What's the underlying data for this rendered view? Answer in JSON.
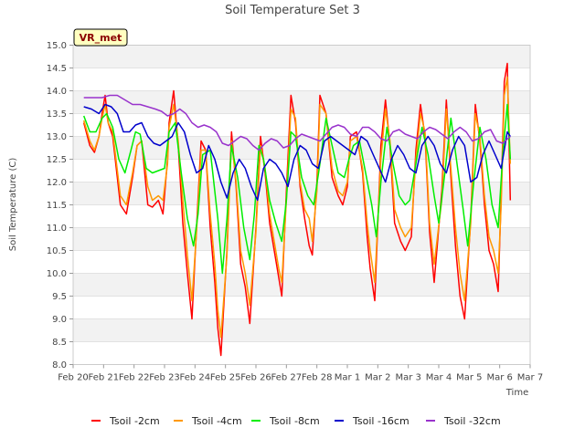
{
  "chart_data": {
    "type": "line",
    "title": "Soil Temperature Set 3",
    "xlabel": "Time",
    "ylabel": "Soil Temperature (C)",
    "station_label": "VR_met",
    "ylim": [
      8.0,
      15.0
    ],
    "y_ticks": [
      "8.0",
      "8.5",
      "9.0",
      "9.5",
      "10.0",
      "10.5",
      "11.0",
      "11.5",
      "12.0",
      "12.5",
      "13.0",
      "13.5",
      "14.0",
      "14.5",
      "15.0"
    ],
    "x_ticks": [
      "Feb 20",
      "Feb 21",
      "Feb 22",
      "Feb 23",
      "Feb 24",
      "Feb 25",
      "Feb 26",
      "Feb 27",
      "Feb 28",
      "Mar 1",
      "Mar 2",
      "Mar 3",
      "Mar 4",
      "Mar 5",
      "Mar 6",
      "Mar 7"
    ],
    "x_unit": "day index (0 = Feb 20, 15 = Mar 7)",
    "xlim": [
      0,
      15
    ],
    "grid": "horizontal bands",
    "legend_position": "bottom",
    "series": [
      {
        "name": "Tsoil -2cm",
        "color": "#ff0000",
        "x": [
          0.35,
          0.55,
          0.7,
          0.85,
          0.95,
          1.05,
          1.15,
          1.3,
          1.55,
          1.75,
          1.95,
          2.1,
          2.25,
          2.45,
          2.6,
          2.8,
          2.95,
          3.1,
          3.15,
          3.3,
          3.45,
          3.6,
          3.75,
          3.9,
          4.05,
          4.2,
          4.35,
          4.5,
          4.65,
          4.75,
          4.85,
          5.05,
          5.2,
          5.35,
          5.5,
          5.65,
          5.8,
          6.0,
          6.15,
          6.3,
          6.45,
          6.6,
          6.75,
          6.85,
          7.0,
          7.15,
          7.3,
          7.45,
          7.6,
          7.75,
          7.85,
          8.0,
          8.1,
          8.3,
          8.5,
          8.7,
          8.85,
          9.0,
          9.1,
          9.3,
          9.5,
          9.65,
          9.75,
          9.9,
          10.1,
          10.25,
          10.4,
          10.55,
          10.75,
          10.9,
          11.1,
          11.25,
          11.4,
          11.55,
          11.7,
          11.85,
          12.1,
          12.25,
          12.4,
          12.55,
          12.7,
          12.85,
          13.05,
          13.2,
          13.35,
          13.5,
          13.65,
          13.8,
          13.95,
          14.05,
          14.15,
          14.25,
          14.35
        ],
        "y": [
          13.3,
          12.8,
          12.65,
          13.0,
          13.5,
          13.9,
          13.3,
          13.0,
          11.5,
          11.3,
          12.1,
          12.8,
          12.9,
          11.5,
          11.45,
          11.6,
          11.3,
          12.5,
          13.3,
          14.0,
          12.8,
          11.1,
          10.0,
          9.0,
          11.0,
          12.9,
          12.7,
          11.0,
          9.8,
          8.8,
          8.2,
          10.5,
          13.1,
          11.9,
          10.2,
          9.7,
          8.9,
          11.0,
          13.0,
          12.2,
          11.1,
          10.5,
          9.9,
          9.5,
          11.8,
          13.9,
          13.3,
          11.9,
          11.2,
          10.6,
          10.4,
          12.0,
          13.9,
          13.5,
          12.1,
          11.7,
          11.5,
          11.9,
          13.0,
          13.1,
          12.2,
          10.8,
          10.1,
          9.4,
          12.8,
          13.8,
          12.8,
          11.1,
          10.7,
          10.5,
          10.8,
          12.7,
          13.7,
          13.0,
          10.9,
          9.8,
          11.8,
          13.8,
          12.1,
          10.6,
          9.5,
          9.0,
          11.2,
          13.7,
          12.9,
          11.5,
          10.5,
          10.2,
          9.6,
          11.7,
          14.2,
          14.6,
          11.6
        ]
      },
      {
        "name": "Tsoil -4cm",
        "color": "#ff9900",
        "x": [
          0.35,
          0.55,
          0.7,
          0.85,
          0.95,
          1.05,
          1.15,
          1.3,
          1.55,
          1.75,
          1.95,
          2.1,
          2.25,
          2.45,
          2.6,
          2.8,
          2.95,
          3.1,
          3.15,
          3.3,
          3.45,
          3.6,
          3.75,
          3.9,
          4.05,
          4.2,
          4.35,
          4.5,
          4.65,
          4.75,
          4.85,
          5.05,
          5.2,
          5.35,
          5.5,
          5.65,
          5.8,
          6.0,
          6.15,
          6.3,
          6.45,
          6.6,
          6.75,
          6.85,
          7.0,
          7.15,
          7.3,
          7.45,
          7.6,
          7.75,
          7.85,
          8.0,
          8.1,
          8.3,
          8.5,
          8.7,
          8.85,
          9.0,
          9.1,
          9.3,
          9.5,
          9.65,
          9.75,
          9.9,
          10.1,
          10.25,
          10.4,
          10.55,
          10.75,
          10.9,
          11.1,
          11.25,
          11.4,
          11.55,
          11.7,
          11.85,
          12.1,
          12.25,
          12.4,
          12.55,
          12.7,
          12.85,
          13.05,
          13.2,
          13.35,
          13.5,
          13.65,
          13.8,
          13.95,
          14.05,
          14.15,
          14.25,
          14.35
        ],
        "y": [
          13.35,
          12.9,
          12.7,
          13.0,
          13.4,
          13.7,
          13.3,
          13.1,
          11.7,
          11.5,
          12.2,
          12.8,
          12.9,
          11.9,
          11.6,
          11.7,
          11.6,
          12.4,
          13.2,
          13.7,
          12.9,
          11.6,
          10.4,
          9.4,
          10.9,
          12.7,
          12.7,
          11.3,
          10.2,
          9.2,
          8.6,
          10.4,
          12.9,
          12.0,
          10.5,
          10.0,
          9.3,
          10.9,
          12.8,
          12.3,
          11.3,
          10.7,
          10.1,
          9.8,
          11.6,
          13.6,
          13.4,
          12.0,
          11.4,
          11.2,
          10.7,
          11.8,
          13.7,
          13.5,
          12.3,
          11.8,
          11.7,
          12.0,
          12.9,
          13.0,
          12.3,
          11.1,
          10.5,
          9.8,
          12.5,
          13.6,
          12.9,
          11.4,
          11.0,
          10.8,
          11.0,
          12.5,
          13.5,
          13.1,
          11.1,
          10.2,
          11.6,
          13.6,
          12.3,
          11.0,
          10.0,
          9.4,
          11.1,
          13.5,
          13.0,
          11.7,
          10.8,
          10.5,
          10.0,
          11.5,
          13.9,
          14.3,
          12.4
        ]
      },
      {
        "name": "Tsoil -8cm",
        "color": "#00ee00",
        "x": [
          0.35,
          0.55,
          0.75,
          0.95,
          1.1,
          1.3,
          1.5,
          1.7,
          1.9,
          2.05,
          2.2,
          2.4,
          2.6,
          2.8,
          3.0,
          3.15,
          3.35,
          3.55,
          3.75,
          3.95,
          4.1,
          4.25,
          4.5,
          4.75,
          4.9,
          5.05,
          5.2,
          5.4,
          5.6,
          5.8,
          5.95,
          6.1,
          6.25,
          6.45,
          6.65,
          6.85,
          7.0,
          7.15,
          7.3,
          7.5,
          7.7,
          7.9,
          8.1,
          8.3,
          8.5,
          8.7,
          8.9,
          9.05,
          9.2,
          9.4,
          9.6,
          9.8,
          9.95,
          10.1,
          10.3,
          10.5,
          10.7,
          10.9,
          11.05,
          11.25,
          11.45,
          11.65,
          11.85,
          12.0,
          12.2,
          12.4,
          12.6,
          12.8,
          12.95,
          13.15,
          13.35,
          13.55,
          13.75,
          13.95,
          14.1,
          14.25,
          14.35
        ],
        "y": [
          13.45,
          13.1,
          13.1,
          13.4,
          13.5,
          13.2,
          12.5,
          12.2,
          12.7,
          13.1,
          13.05,
          12.3,
          12.2,
          12.25,
          12.3,
          13.1,
          13.3,
          12.2,
          11.2,
          10.6,
          11.3,
          12.6,
          12.7,
          11.2,
          10.0,
          11.2,
          12.8,
          12.1,
          11.0,
          10.3,
          11.3,
          12.8,
          12.5,
          11.6,
          11.1,
          10.7,
          11.6,
          13.1,
          13.0,
          12.1,
          11.7,
          11.5,
          12.4,
          13.4,
          12.8,
          12.2,
          12.1,
          12.5,
          12.8,
          12.9,
          12.2,
          11.5,
          10.8,
          12.0,
          13.2,
          12.4,
          11.7,
          11.5,
          11.6,
          12.4,
          13.2,
          12.6,
          11.7,
          11.1,
          12.2,
          13.4,
          12.4,
          11.4,
          10.6,
          12.0,
          13.2,
          12.5,
          11.5,
          11.0,
          12.6,
          13.7,
          12.5
        ]
      },
      {
        "name": "Tsoil -16cm",
        "color": "#0000cc",
        "x": [
          0.35,
          0.6,
          0.85,
          1.05,
          1.25,
          1.45,
          1.65,
          1.85,
          2.05,
          2.25,
          2.45,
          2.65,
          2.85,
          3.05,
          3.25,
          3.45,
          3.65,
          3.85,
          4.05,
          4.25,
          4.45,
          4.65,
          4.85,
          5.05,
          5.25,
          5.45,
          5.65,
          5.85,
          6.05,
          6.25,
          6.45,
          6.65,
          6.85,
          7.05,
          7.25,
          7.45,
          7.65,
          7.85,
          8.05,
          8.25,
          8.45,
          8.65,
          8.85,
          9.05,
          9.25,
          9.45,
          9.65,
          9.85,
          10.05,
          10.25,
          10.45,
          10.65,
          10.85,
          11.05,
          11.25,
          11.45,
          11.65,
          11.85,
          12.05,
          12.25,
          12.45,
          12.65,
          12.85,
          13.05,
          13.25,
          13.45,
          13.65,
          13.85,
          14.05,
          14.25,
          14.35
        ],
        "y": [
          13.65,
          13.6,
          13.5,
          13.7,
          13.65,
          13.5,
          13.1,
          13.1,
          13.25,
          13.3,
          13.0,
          12.85,
          12.8,
          12.9,
          13.0,
          13.3,
          13.1,
          12.6,
          12.2,
          12.3,
          12.8,
          12.5,
          12.0,
          11.65,
          12.2,
          12.5,
          12.3,
          11.9,
          11.6,
          12.3,
          12.5,
          12.4,
          12.2,
          11.9,
          12.5,
          12.8,
          12.7,
          12.4,
          12.3,
          12.9,
          13.0,
          12.9,
          12.8,
          12.7,
          12.6,
          13.0,
          12.9,
          12.6,
          12.3,
          12.0,
          12.5,
          12.8,
          12.6,
          12.3,
          12.2,
          12.8,
          13.0,
          12.8,
          12.4,
          12.2,
          12.7,
          13.0,
          12.8,
          12.0,
          12.1,
          12.6,
          12.9,
          12.6,
          12.3,
          13.1,
          13.0
        ]
      },
      {
        "name": "Tsoil -32cm",
        "color": "#9933cc",
        "x": [
          0.35,
          0.65,
          0.95,
          1.2,
          1.45,
          1.7,
          1.95,
          2.2,
          2.45,
          2.7,
          2.9,
          3.1,
          3.3,
          3.5,
          3.7,
          3.9,
          4.1,
          4.3,
          4.5,
          4.7,
          4.9,
          5.1,
          5.3,
          5.5,
          5.7,
          5.9,
          6.1,
          6.3,
          6.5,
          6.7,
          6.9,
          7.1,
          7.3,
          7.5,
          7.7,
          7.9,
          8.1,
          8.3,
          8.5,
          8.7,
          8.9,
          9.1,
          9.3,
          9.5,
          9.7,
          9.9,
          10.1,
          10.3,
          10.5,
          10.7,
          10.9,
          11.1,
          11.3,
          11.5,
          11.7,
          11.9,
          12.1,
          12.3,
          12.5,
          12.7,
          12.9,
          13.1,
          13.3,
          13.5,
          13.7,
          13.9,
          14.1,
          14.35
        ],
        "y": [
          13.85,
          13.85,
          13.85,
          13.9,
          13.9,
          13.8,
          13.7,
          13.7,
          13.65,
          13.6,
          13.55,
          13.45,
          13.5,
          13.6,
          13.5,
          13.3,
          13.2,
          13.25,
          13.2,
          13.1,
          12.85,
          12.8,
          12.9,
          13.0,
          12.95,
          12.8,
          12.7,
          12.85,
          12.95,
          12.9,
          12.75,
          12.8,
          12.95,
          13.05,
          13.0,
          12.95,
          12.9,
          13.05,
          13.2,
          13.25,
          13.2,
          13.05,
          13.0,
          13.2,
          13.2,
          13.1,
          12.95,
          12.9,
          13.1,
          13.15,
          13.05,
          13.0,
          12.95,
          13.1,
          13.2,
          13.15,
          13.05,
          12.95,
          13.1,
          13.2,
          13.1,
          12.9,
          12.95,
          13.1,
          13.15,
          12.9,
          12.85,
          13.0
        ]
      }
    ]
  }
}
